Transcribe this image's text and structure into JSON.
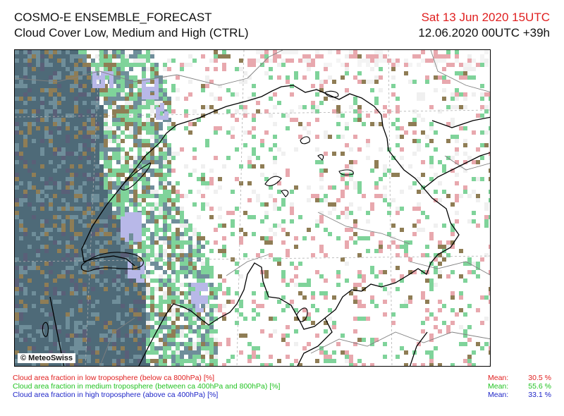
{
  "header": {
    "model": "COSMO-E ENSEMBLE_FORECAST",
    "product": "Cloud Cover Low, Medium and High (CTRL)",
    "valid_time": "Sat 13 Jun 2020 15UTC",
    "run_time": "12.06.2020 00UTC +39h"
  },
  "map": {
    "copyright": "© MeteoSwiss",
    "colors": {
      "low": "#e8a8ae",
      "medium": "#7fd39a",
      "high": "#b8b8e8",
      "low_medium": "#8f7d55",
      "high_medium": "#6f8e9a",
      "all": "#4e6a78",
      "border": "#000000",
      "region": "#808080"
    }
  },
  "legend": [
    {
      "label": "Cloud area fraction in low troposphere (below ca 800hPa) [%]",
      "mean_label": "Mean:",
      "mean_value": "30.5 %",
      "color": "#e02020"
    },
    {
      "label": "Cloud area fraction in medium troposphere (between ca 400hPa and 800hPa) [%]",
      "mean_label": "Mean:",
      "mean_value": "55.6 %",
      "color": "#22c322"
    },
    {
      "label": "Cloud area fraction in high troposphere (above ca 400hPa) [%]",
      "mean_label": "Mean:",
      "mean_value": "33.1 %",
      "color": "#1f26c8"
    }
  ]
}
